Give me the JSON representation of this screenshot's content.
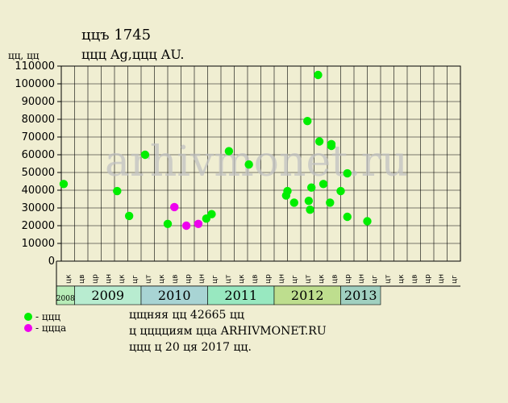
{
  "header": {
    "title": "ццъ 1745",
    "subtitle": "ццц Ag,ццц AU.",
    "unit": "цц, цц"
  },
  "watermark": "arhivmonet.ru",
  "legend": [
    {
      "label": "- ццц",
      "color": "#00ee00"
    },
    {
      "label": "- ццца",
      "color": "#ee00ee"
    }
  ],
  "notes": {
    "line1": "цщняя цц 42665 цц",
    "line2": "ц цццциям цца ARHIVMONET.RU",
    "line3": "ццц ц 20 ця 2017 цц."
  },
  "chart_data": {
    "type": "scatter",
    "ylim": [
      0,
      110000
    ],
    "yticks": [
      0,
      10000,
      20000,
      30000,
      40000,
      50000,
      60000,
      70000,
      80000,
      90000,
      100000,
      110000
    ],
    "grid": true,
    "month_labels": [
      "цк",
      "цв",
      "цр",
      "цн",
      "цк",
      "цг",
      "цт",
      "цк",
      "цв",
      "цр",
      "цн",
      "цг",
      "цт",
      "цк",
      "цв",
      "цр",
      "цн",
      "цг",
      "цт",
      "цк",
      "цв",
      "цр",
      "цн",
      "цг",
      "цт",
      "цк",
      "цв",
      "цр",
      "цн",
      "цг"
    ],
    "years": [
      {
        "label": "2008",
        "start": 0,
        "end": 1,
        "color": "#b8ecb8"
      },
      {
        "label": "2009",
        "start": 1,
        "end": 6,
        "color": "#b8ecd0"
      },
      {
        "label": "2010",
        "start": 6,
        "end": 11,
        "color": "#a8d4d4"
      },
      {
        "label": "2011",
        "start": 11,
        "end": 16,
        "color": "#98e8c0"
      },
      {
        "label": "2012",
        "start": 16,
        "end": 21,
        "color": "#bede8e"
      },
      {
        "label": "2013",
        "start": 21,
        "end": 24,
        "color": "#a0d0c0"
      }
    ],
    "series": [
      {
        "color": "#00ee00",
        "points": [
          [
            0.18,
            43500
          ],
          [
            4.2,
            39500
          ],
          [
            5.1,
            25500
          ],
          [
            6.3,
            60000
          ],
          [
            8.0,
            21000
          ],
          [
            10.9,
            24000
          ],
          [
            11.3,
            26500
          ],
          [
            12.6,
            62000
          ],
          [
            14.1,
            54500
          ],
          [
            17.0,
            39500
          ],
          [
            16.9,
            37000
          ],
          [
            17.5,
            33000
          ],
          [
            18.5,
            79000
          ],
          [
            18.6,
            34000
          ],
          [
            18.7,
            29000
          ],
          [
            18.8,
            41500
          ],
          [
            19.3,
            105000
          ],
          [
            19.4,
            67500
          ],
          [
            19.7,
            43500
          ],
          [
            20.2,
            33000
          ],
          [
            20.3,
            66000
          ],
          [
            20.3,
            65000
          ],
          [
            21.0,
            39500
          ],
          [
            21.5,
            49500
          ],
          [
            21.5,
            25000
          ],
          [
            23.0,
            22500
          ]
        ]
      },
      {
        "color": "#ee00ee",
        "points": [
          [
            8.5,
            30500
          ],
          [
            9.4,
            20000
          ],
          [
            10.3,
            21000
          ]
        ]
      }
    ]
  }
}
